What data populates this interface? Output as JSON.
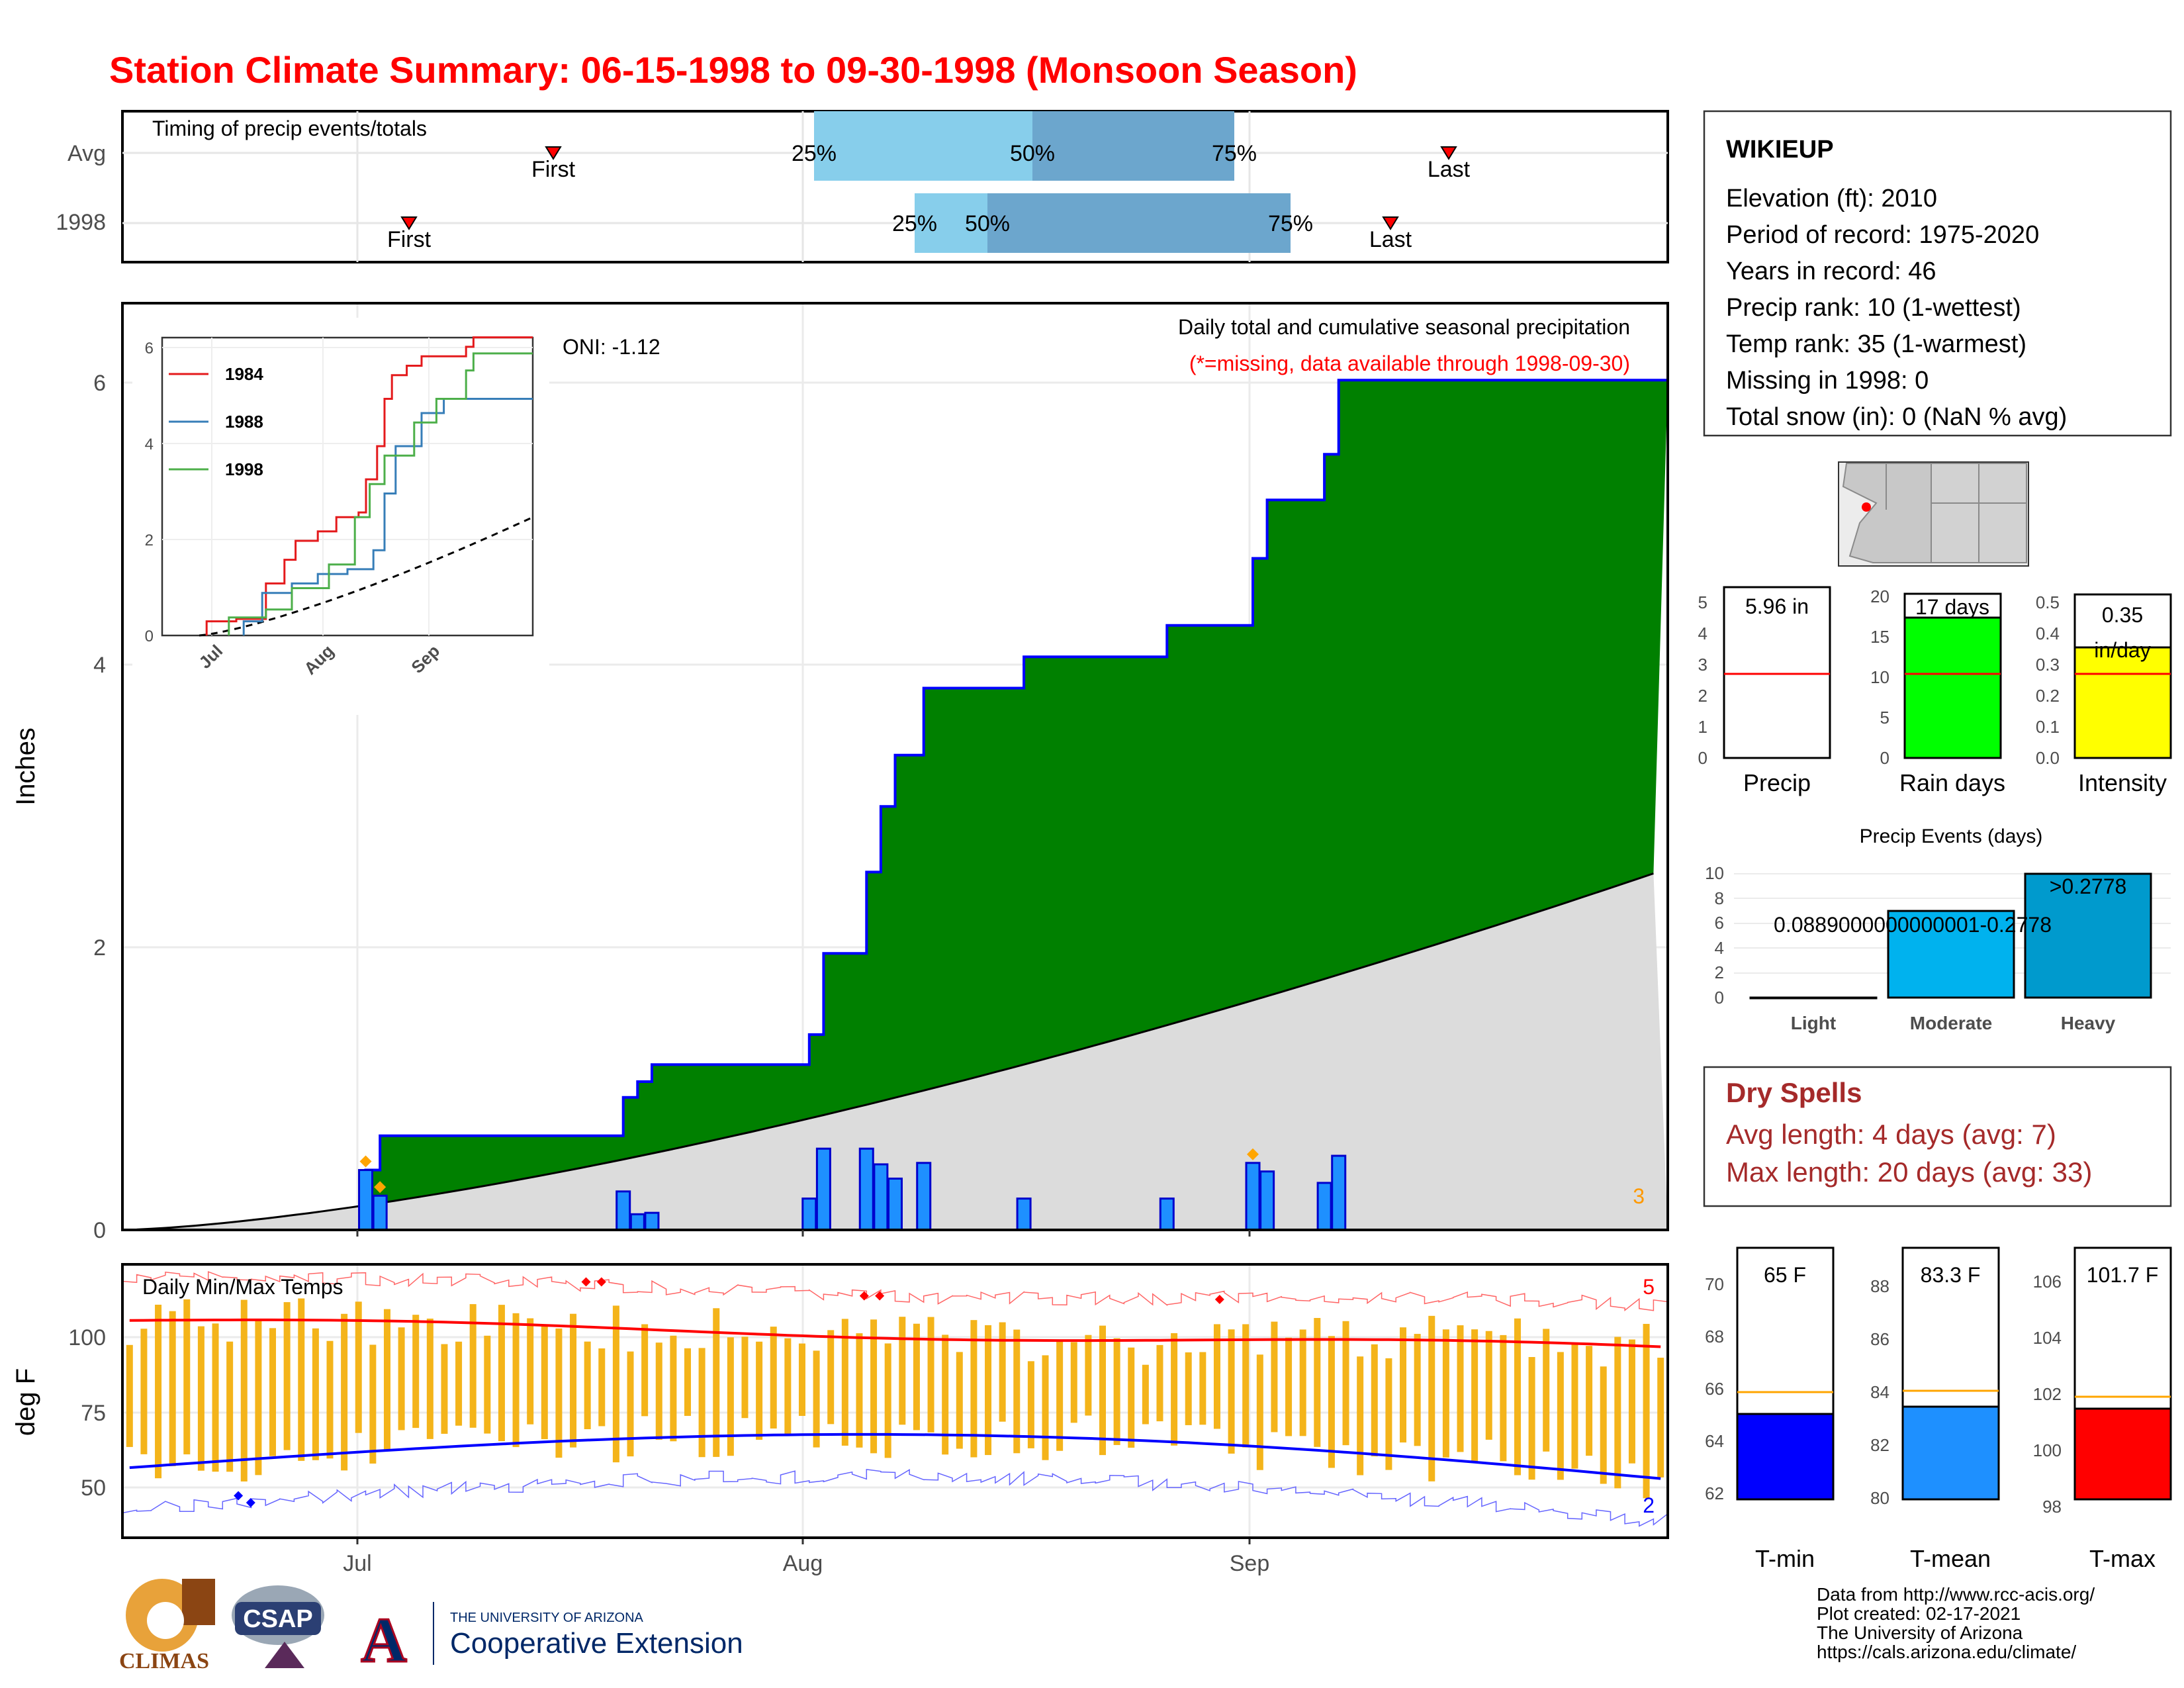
{
  "title": "Station Climate Summary: 06-15-1998 to 09-30-1998 (Monsoon Season)",
  "timing": {
    "label": "Timing of precip events/totals",
    "rows": [
      "Avg",
      "1998"
    ],
    "avg": {
      "p25": "25%",
      "p50": "50%",
      "p75": "75%",
      "first": "First",
      "last": "Last"
    },
    "yr": {
      "p25": "25%",
      "p50": "50%",
      "p75": "75%",
      "first": "First",
      "last": "Last"
    }
  },
  "main": {
    "ylabel": "Inches",
    "title": "Daily total and cumulative seasonal precipitation",
    "note": "(*=missing, data available through 1998-09-30)",
    "oni": "ONI: -1.12",
    "count": "3",
    "yticks": [
      "0",
      "2",
      "4",
      "6"
    ],
    "xticks": [
      "Jul",
      "Aug",
      "Sep"
    ]
  },
  "inset": {
    "yticks": [
      "0",
      "2",
      "4",
      "6"
    ],
    "xticks": [
      "Jul",
      "Aug",
      "Sep"
    ],
    "legend": [
      "1984",
      "1988",
      "1998"
    ],
    "colors": [
      "#e41a1c",
      "#377eb8",
      "#4daf4a"
    ]
  },
  "temps": {
    "label": "Daily Min/Max Temps",
    "ylabel": "deg F",
    "yticks": [
      "100",
      "75",
      "50"
    ],
    "xticks": [
      "Jul",
      "Aug",
      "Sep"
    ],
    "count_hot": "5",
    "count_cold": "2"
  },
  "station": {
    "name": "WIKIEUP",
    "lines": [
      "Elevation (ft): 2010",
      "Period of record: 1975-2020",
      "Years in record: 46",
      "Precip rank: 10 (1-wettest)",
      "Temp rank: 35 (1-warmest)",
      "Missing in 1998: 0",
      "Total snow (in): 0 (NaN % avg)"
    ]
  },
  "mini": {
    "precip": {
      "label": "Precip",
      "value": "5.96 in",
      "yticks": [
        "0",
        "1",
        "2",
        "3",
        "4",
        "5"
      ],
      "color": "#ffffff"
    },
    "raindays": {
      "label": "Rain days",
      "value": "17 days",
      "yticks": [
        "0",
        "5",
        "10",
        "15",
        "20"
      ],
      "color": "#00ff00"
    },
    "intensity": {
      "label": "Intensity",
      "value1": "0.35",
      "value2": "in/day",
      "yticks": [
        "0.0",
        "0.1",
        "0.2",
        "0.3",
        "0.4",
        "0.5"
      ],
      "color": "#ffff00"
    }
  },
  "events": {
    "title": "Precip Events (days)",
    "cats": [
      "Light",
      "Moderate",
      "Heavy"
    ],
    "labels": [
      "0.0889000000000001-0.2778",
      ">0.2778"
    ],
    "yticks": [
      "0",
      "2",
      "4",
      "6",
      "8",
      "10"
    ]
  },
  "dry": {
    "title": "Dry Spells",
    "avg": "Avg length: 4 days (avg: 7)",
    "max": "Max length: 20 days (avg: 33)"
  },
  "tbars": {
    "tmin": {
      "label": "T-min",
      "value": "65 F",
      "yticks": [
        "62",
        "64",
        "66",
        "68",
        "70"
      ],
      "color": "#0000ff"
    },
    "tmean": {
      "label": "T-mean",
      "value": "83.3 F",
      "yticks": [
        "80",
        "82",
        "84",
        "86",
        "88"
      ],
      "color": "#1e90ff"
    },
    "tmax": {
      "label": "T-max",
      "value": "101.7 F",
      "yticks": [
        "98",
        "100",
        "102",
        "104",
        "106"
      ],
      "color": "#ff0000"
    }
  },
  "footer": {
    "lines": [
      "Data from http://www.rcc-acis.org/",
      "Plot created: 02-17-2021",
      "The University of Arizona",
      "https://cals.arizona.edu/climate/"
    ],
    "logo_climas": "CLIMAS",
    "logo_csap": "CSAP",
    "ua_small": "THE UNIVERSITY OF ARIZONA",
    "ua_big": "Cooperative Extension",
    "ua_letter": "A"
  },
  "chart_data": [
    {
      "type": "area",
      "title": "Daily total and cumulative seasonal precipitation",
      "ylabel": "Inches",
      "ylim": [
        0,
        6.5
      ],
      "x_range": [
        "1998-06-15",
        "1998-09-30"
      ],
      "cumulative_1998_steps": [
        {
          "date": "07-02",
          "value": 0.42
        },
        {
          "date": "07-03",
          "value": 0.66
        },
        {
          "date": "07-20",
          "value": 0.93
        },
        {
          "date": "07-21",
          "value": 1.04
        },
        {
          "date": "07-22",
          "value": 1.16
        },
        {
          "date": "08-02",
          "value": 1.37
        },
        {
          "date": "08-03",
          "value": 1.94
        },
        {
          "date": "08-06",
          "value": 2.51
        },
        {
          "date": "08-07",
          "value": 2.97
        },
        {
          "date": "08-08",
          "value": 3.33
        },
        {
          "date": "08-10",
          "value": 3.8
        },
        {
          "date": "08-17",
          "value": 4.02
        },
        {
          "date": "08-27",
          "value": 4.24
        },
        {
          "date": "09-02",
          "value": 4.71
        },
        {
          "date": "09-03",
          "value": 5.12
        },
        {
          "date": "09-07",
          "value": 5.44
        },
        {
          "date": "09-08",
          "value": 5.96
        }
      ],
      "daily_precip": [
        {
          "date": "07-02",
          "value": 0.42
        },
        {
          "date": "07-03",
          "value": 0.24
        },
        {
          "date": "07-20",
          "value": 0.27
        },
        {
          "date": "07-21",
          "value": 0.11
        },
        {
          "date": "07-22",
          "value": 0.12
        },
        {
          "date": "08-02",
          "value": 0.22
        },
        {
          "date": "08-03",
          "value": 0.57
        },
        {
          "date": "08-06",
          "value": 0.57
        },
        {
          "date": "08-07",
          "value": 0.46
        },
        {
          "date": "08-08",
          "value": 0.36
        },
        {
          "date": "08-10",
          "value": 0.47
        },
        {
          "date": "08-17",
          "value": 0.22
        },
        {
          "date": "08-27",
          "value": 0.22
        },
        {
          "date": "09-02",
          "value": 0.47
        },
        {
          "date": "09-03",
          "value": 0.41
        },
        {
          "date": "09-07",
          "value": 0.33
        },
        {
          "date": "09-08",
          "value": 0.52
        }
      ],
      "avg_cumulative_end": 2.5
    },
    {
      "type": "line",
      "title": "Inset cumulative precipitation",
      "series": [
        {
          "name": "1984",
          "end": 6.3
        },
        {
          "name": "1988",
          "end": 5.0
        },
        {
          "name": "1998",
          "end": 5.96
        }
      ],
      "ylim": [
        0,
        6.2
      ]
    },
    {
      "type": "bar",
      "title": "Daily Min/Max Temps",
      "ylabel": "deg F",
      "ylim": [
        40,
        118
      ],
      "avg_max_start": 102,
      "avg_max_end": 94,
      "avg_min_start": 60,
      "avg_min_end": 55
    },
    {
      "type": "bar",
      "title": "Precip Events (days)",
      "categories": [
        "Light",
        "Moderate",
        "Heavy"
      ],
      "values": [
        0,
        7,
        10
      ],
      "ylim": [
        0,
        10
      ]
    },
    {
      "type": "bar",
      "title": "Seasonal summary",
      "categories": [
        "Precip",
        "Rain days",
        "Intensity",
        "T-min",
        "T-mean",
        "T-max"
      ],
      "values": [
        5.96,
        17,
        0.35,
        65,
        83.3,
        101.7
      ],
      "averages": [
        2.8,
        10.3,
        0.27,
        65.9,
        84.1,
        102.3
      ]
    }
  ]
}
